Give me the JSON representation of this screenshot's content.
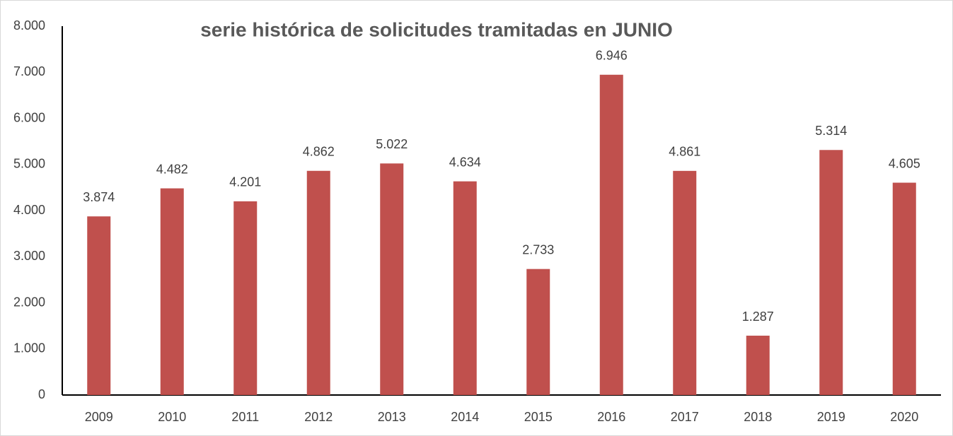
{
  "chart_data": {
    "type": "bar",
    "title": "serie histórica de solicitudes tramitadas en JUNIO",
    "categories": [
      "2009",
      "2010",
      "2011",
      "2012",
      "2013",
      "2014",
      "2015",
      "2016",
      "2017",
      "2018",
      "2019",
      "2020"
    ],
    "values": [
      3874,
      4482,
      4201,
      4862,
      5022,
      4634,
      2733,
      6946,
      4861,
      1287,
      5314,
      4605
    ],
    "value_labels": [
      "3.874",
      "4.482",
      "4.201",
      "4.862",
      "5.022",
      "4.634",
      "2.733",
      "6.946",
      "4.861",
      "1.287",
      "5.314",
      "4.605"
    ],
    "color": "#c0504d",
    "ylim": [
      0,
      8000
    ],
    "yticks": [
      0,
      {
        "value": 1000,
        "label": "1.000"
      },
      {
        "value": 2000,
        "label": "2.000"
      },
      {
        "value": 3000,
        "label": "3.000"
      },
      {
        "value": 4000,
        "label": "4.000"
      },
      {
        "value": 5000,
        "label": "5.000"
      },
      {
        "value": 6000,
        "label": "6.000"
      },
      {
        "value": 7000,
        "label": "7.000"
      },
      {
        "value": 8000,
        "label": "8.000"
      }
    ]
  }
}
